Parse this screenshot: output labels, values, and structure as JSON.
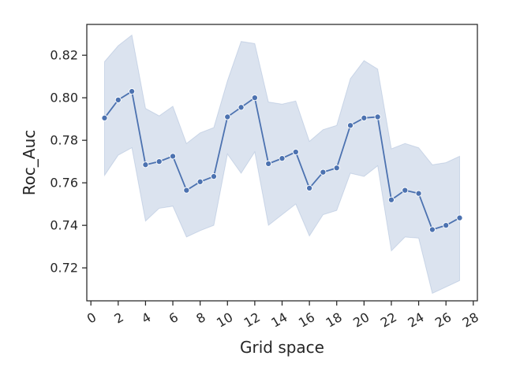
{
  "chart_data": {
    "type": "line",
    "title": "",
    "xlabel": "Grid space",
    "ylabel": "Roc_Auc",
    "xlim": [
      -0.3,
      28.3
    ],
    "ylim": [
      0.7045,
      0.8345
    ],
    "x_ticks": [
      0,
      2,
      4,
      6,
      8,
      10,
      12,
      14,
      16,
      18,
      20,
      22,
      24,
      26,
      28
    ],
    "y_ticks": [
      0.72,
      0.74,
      0.76,
      0.78,
      0.8,
      0.82
    ],
    "grid": false,
    "legend": "none",
    "series": [
      {
        "x": [
          1,
          2,
          3,
          4,
          5,
          6,
          7,
          8,
          9,
          10,
          11,
          12,
          13,
          14,
          15,
          16,
          17,
          18,
          19,
          20,
          21,
          22,
          23,
          24,
          25,
          26,
          27
        ],
        "y": [
          0.7905,
          0.799,
          0.803,
          0.7685,
          0.77,
          0.7725,
          0.7565,
          0.7605,
          0.763,
          0.791,
          0.7955,
          0.8,
          0.769,
          0.7715,
          0.7745,
          0.7575,
          0.765,
          0.767,
          0.787,
          0.7905,
          0.791,
          0.752,
          0.7565,
          0.755,
          0.738,
          0.74,
          0.7435
        ],
        "ci_upper": [
          0.817,
          0.8245,
          0.8295,
          0.795,
          0.7915,
          0.796,
          0.7785,
          0.7835,
          0.786,
          0.808,
          0.8265,
          0.8255,
          0.798,
          0.797,
          0.7985,
          0.7795,
          0.785,
          0.787,
          0.809,
          0.8175,
          0.8135,
          0.776,
          0.7785,
          0.7765,
          0.7685,
          0.7695,
          0.7725
        ],
        "ci_lower": [
          0.7635,
          0.773,
          0.7765,
          0.742,
          0.748,
          0.749,
          0.7345,
          0.7375,
          0.74,
          0.7735,
          0.7645,
          0.7745,
          0.74,
          0.745,
          0.75,
          0.735,
          0.745,
          0.747,
          0.7645,
          0.763,
          0.768,
          0.728,
          0.7345,
          0.734,
          0.708,
          0.711,
          0.714
        ]
      }
    ],
    "colors": {
      "line": "#4c72b0",
      "band": "#4c72b0",
      "axis": "#262626"
    }
  }
}
